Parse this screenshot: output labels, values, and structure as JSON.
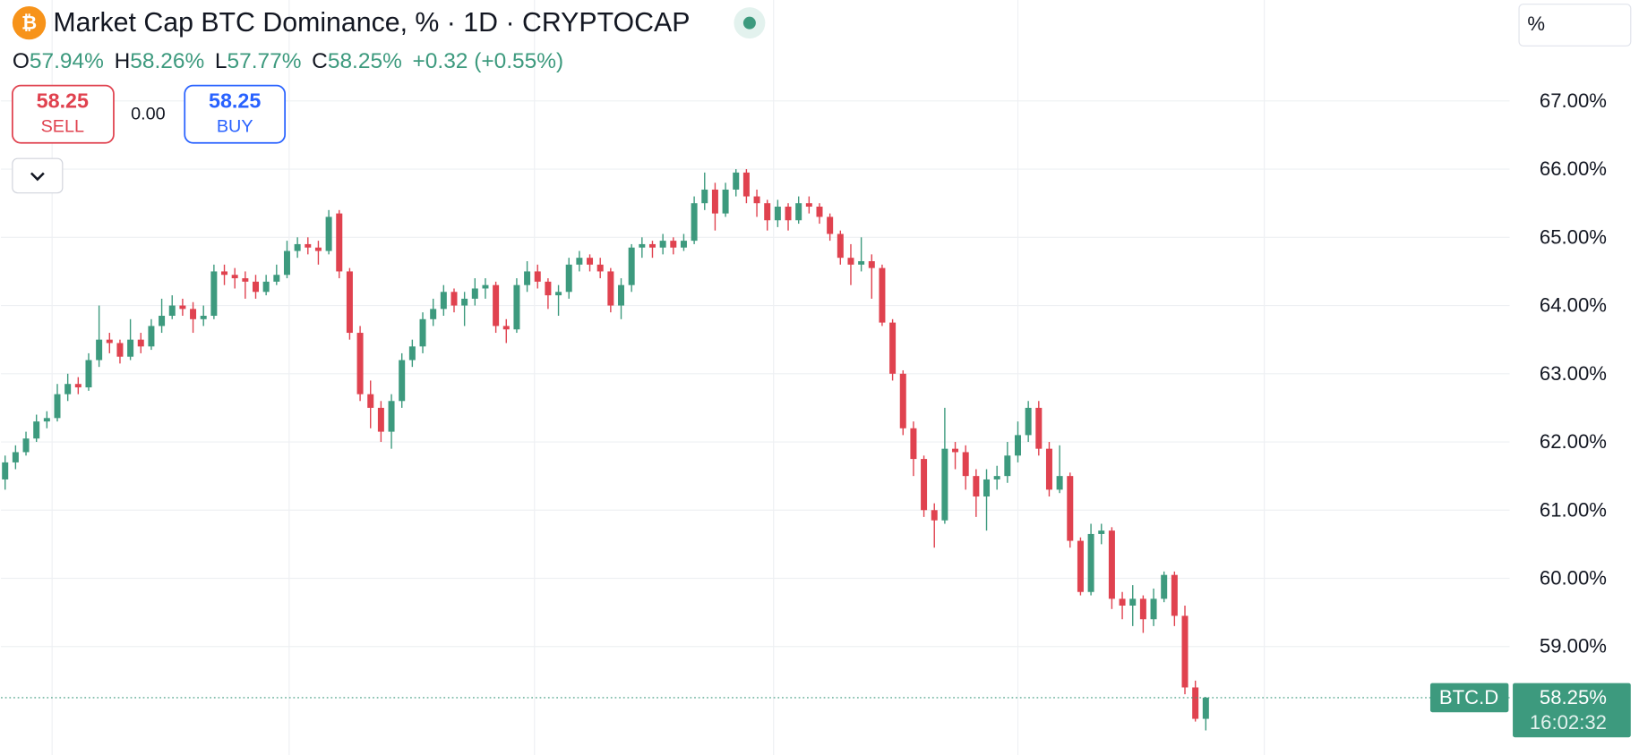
{
  "header": {
    "title": "Market Cap BTC Dominance, % · 1D · CRYPTOCAP",
    "ohlc": [
      {
        "key": "O",
        "value": "57.94%"
      },
      {
        "key": "H",
        "value": "58.26%"
      },
      {
        "key": "L",
        "value": "57.77%"
      },
      {
        "key": "C",
        "value": "58.25%"
      }
    ],
    "change": "+0.32 (+0.55%)",
    "sell": {
      "price": "58.25",
      "label": "SELL"
    },
    "spread": "0.00",
    "buy": {
      "price": "58.25",
      "label": "BUY"
    },
    "axis_unit": "%"
  },
  "chart_data": {
    "type": "candlestick",
    "symbol": "BTC.D",
    "price_label": "58.25%",
    "time_label": "16:02:32",
    "up_color": "#3d9a7e",
    "down_color": "#e0424f",
    "grid": true,
    "ylim": [
      57.44,
      68.48
    ],
    "yticks": [
      {
        "value": 59,
        "label": "59.00%"
      },
      {
        "value": 60,
        "label": "60.00%"
      },
      {
        "value": 61,
        "label": "61.00%"
      },
      {
        "value": 62,
        "label": "62.00%"
      },
      {
        "value": 63,
        "label": "63.00%"
      },
      {
        "value": 64,
        "label": "64.00%"
      },
      {
        "value": 65,
        "label": "65.00%"
      },
      {
        "value": 66,
        "label": "66.00%"
      },
      {
        "value": 67,
        "label": "67.00%"
      }
    ],
    "ohlc": [
      [
        61.45,
        61.8,
        61.3,
        61.7
      ],
      [
        61.7,
        61.95,
        61.6,
        61.85
      ],
      [
        61.85,
        62.15,
        61.8,
        62.05
      ],
      [
        62.05,
        62.4,
        62.0,
        62.3
      ],
      [
        62.3,
        62.45,
        62.2,
        62.35
      ],
      [
        62.35,
        62.85,
        62.3,
        62.7
      ],
      [
        62.7,
        63.0,
        62.6,
        62.85
      ],
      [
        62.85,
        62.95,
        62.7,
        62.8
      ],
      [
        62.8,
        63.3,
        62.75,
        63.2
      ],
      [
        63.2,
        64.0,
        63.1,
        63.5
      ],
      [
        63.5,
        63.6,
        63.3,
        63.45
      ],
      [
        63.45,
        63.5,
        63.15,
        63.25
      ],
      [
        63.25,
        63.8,
        63.2,
        63.5
      ],
      [
        63.5,
        63.6,
        63.3,
        63.4
      ],
      [
        63.4,
        63.8,
        63.35,
        63.7
      ],
      [
        63.7,
        64.1,
        63.6,
        63.85
      ],
      [
        63.85,
        64.15,
        63.8,
        64.0
      ],
      [
        64.0,
        64.1,
        63.85,
        63.95
      ],
      [
        63.95,
        64.05,
        63.6,
        63.8
      ],
      [
        63.8,
        64.0,
        63.7,
        63.85
      ],
      [
        63.85,
        64.6,
        63.8,
        64.5
      ],
      [
        64.5,
        64.6,
        64.3,
        64.45
      ],
      [
        64.45,
        64.55,
        64.25,
        64.4
      ],
      [
        64.4,
        64.5,
        64.1,
        64.35
      ],
      [
        64.35,
        64.45,
        64.1,
        64.2
      ],
      [
        64.2,
        64.45,
        64.15,
        64.35
      ],
      [
        64.35,
        64.6,
        64.3,
        64.45
      ],
      [
        64.45,
        64.95,
        64.4,
        64.8
      ],
      [
        64.8,
        65.0,
        64.7,
        64.9
      ],
      [
        64.9,
        65.0,
        64.75,
        64.85
      ],
      [
        64.85,
        64.95,
        64.6,
        64.8
      ],
      [
        64.8,
        65.4,
        64.75,
        65.3
      ],
      [
        65.35,
        65.4,
        64.4,
        64.5
      ],
      [
        64.5,
        64.55,
        63.5,
        63.6
      ],
      [
        63.6,
        63.7,
        62.6,
        62.7
      ],
      [
        62.7,
        62.9,
        62.2,
        62.5
      ],
      [
        62.5,
        62.6,
        62.0,
        62.15
      ],
      [
        62.15,
        62.7,
        61.9,
        62.6
      ],
      [
        62.6,
        63.3,
        62.5,
        63.2
      ],
      [
        63.2,
        63.5,
        63.1,
        63.4
      ],
      [
        63.4,
        63.9,
        63.3,
        63.8
      ],
      [
        63.8,
        64.1,
        63.7,
        63.95
      ],
      [
        63.95,
        64.3,
        63.85,
        64.2
      ],
      [
        64.2,
        64.25,
        63.9,
        64.0
      ],
      [
        64.0,
        64.2,
        63.7,
        64.1
      ],
      [
        64.1,
        64.4,
        64.0,
        64.25
      ],
      [
        64.25,
        64.4,
        64.1,
        64.3
      ],
      [
        64.3,
        64.35,
        63.6,
        63.7
      ],
      [
        63.7,
        63.8,
        63.45,
        63.65
      ],
      [
        63.65,
        64.4,
        63.6,
        64.3
      ],
      [
        64.3,
        64.65,
        64.2,
        64.5
      ],
      [
        64.5,
        64.6,
        64.25,
        64.35
      ],
      [
        64.35,
        64.4,
        63.95,
        64.15
      ],
      [
        64.15,
        64.3,
        63.85,
        64.2
      ],
      [
        64.2,
        64.7,
        64.1,
        64.6
      ],
      [
        64.6,
        64.8,
        64.5,
        64.7
      ],
      [
        64.7,
        64.75,
        64.5,
        64.6
      ],
      [
        64.6,
        64.7,
        64.4,
        64.5
      ],
      [
        64.5,
        64.55,
        63.9,
        64.0
      ],
      [
        64.0,
        64.4,
        63.8,
        64.3
      ],
      [
        64.3,
        64.9,
        64.2,
        64.85
      ],
      [
        64.85,
        65.0,
        64.7,
        64.9
      ],
      [
        64.9,
        64.95,
        64.7,
        64.85
      ],
      [
        64.85,
        65.05,
        64.75,
        64.95
      ],
      [
        64.95,
        65.0,
        64.75,
        64.85
      ],
      [
        64.85,
        65.05,
        64.8,
        64.95
      ],
      [
        64.95,
        65.6,
        64.9,
        65.5
      ],
      [
        65.5,
        65.95,
        65.4,
        65.7
      ],
      [
        65.7,
        65.8,
        65.1,
        65.35
      ],
      [
        65.35,
        65.8,
        65.3,
        65.7
      ],
      [
        65.7,
        66.0,
        65.6,
        65.95
      ],
      [
        65.95,
        66.0,
        65.5,
        65.6
      ],
      [
        65.6,
        65.7,
        65.3,
        65.5
      ],
      [
        65.5,
        65.55,
        65.1,
        65.25
      ],
      [
        65.25,
        65.55,
        65.15,
        65.45
      ],
      [
        65.45,
        65.5,
        65.1,
        65.25
      ],
      [
        65.25,
        65.6,
        65.2,
        65.5
      ],
      [
        65.5,
        65.6,
        65.35,
        65.45
      ],
      [
        65.45,
        65.5,
        65.2,
        65.3
      ],
      [
        65.3,
        65.35,
        64.95,
        65.05
      ],
      [
        65.05,
        65.1,
        64.6,
        64.7
      ],
      [
        64.7,
        64.9,
        64.3,
        64.6
      ],
      [
        64.6,
        65.0,
        64.5,
        64.65
      ],
      [
        64.65,
        64.75,
        64.1,
        64.55
      ],
      [
        64.55,
        64.6,
        63.7,
        63.75
      ],
      [
        63.75,
        63.8,
        62.9,
        63.0
      ],
      [
        63.0,
        63.05,
        62.1,
        62.2
      ],
      [
        62.2,
        62.3,
        61.5,
        61.75
      ],
      [
        61.75,
        61.8,
        60.9,
        61.0
      ],
      [
        61.0,
        61.1,
        60.45,
        60.85
      ],
      [
        60.85,
        62.5,
        60.8,
        61.9
      ],
      [
        61.9,
        62.0,
        61.6,
        61.85
      ],
      [
        61.85,
        61.95,
        61.3,
        61.5
      ],
      [
        61.5,
        61.6,
        60.9,
        61.2
      ],
      [
        61.2,
        61.6,
        60.7,
        61.45
      ],
      [
        61.45,
        61.65,
        61.3,
        61.5
      ],
      [
        61.5,
        62.0,
        61.4,
        61.8
      ],
      [
        61.8,
        62.3,
        61.7,
        62.1
      ],
      [
        62.1,
        62.6,
        62.0,
        62.5
      ],
      [
        62.5,
        62.6,
        61.8,
        61.9
      ],
      [
        61.9,
        62.0,
        61.2,
        61.3
      ],
      [
        61.3,
        61.95,
        61.25,
        61.5
      ],
      [
        61.5,
        61.55,
        60.45,
        60.55
      ],
      [
        60.55,
        60.6,
        59.75,
        59.8
      ],
      [
        59.8,
        60.8,
        59.75,
        60.65
      ],
      [
        60.65,
        60.8,
        60.5,
        60.7
      ],
      [
        60.7,
        60.75,
        59.55,
        59.7
      ],
      [
        59.7,
        59.8,
        59.4,
        59.6
      ],
      [
        59.6,
        59.9,
        59.3,
        59.7
      ],
      [
        59.7,
        59.75,
        59.2,
        59.4
      ],
      [
        59.4,
        59.85,
        59.3,
        59.7
      ],
      [
        59.7,
        60.1,
        59.65,
        60.05
      ],
      [
        60.05,
        60.1,
        59.3,
        59.45
      ],
      [
        59.45,
        59.6,
        58.3,
        58.4
      ],
      [
        58.4,
        58.5,
        57.9,
        57.94
      ],
      [
        57.94,
        58.26,
        57.77,
        58.25
      ]
    ]
  }
}
